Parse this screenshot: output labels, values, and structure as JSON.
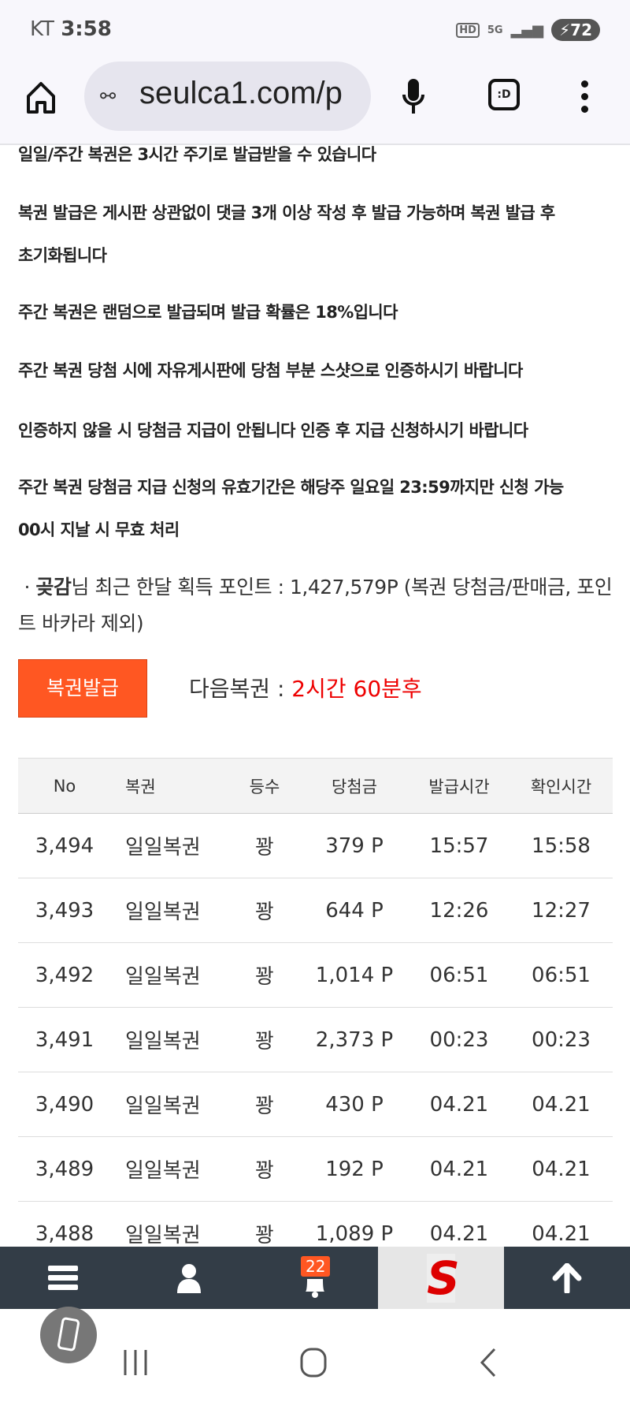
{
  "status_bar": {
    "carrier": "KT",
    "time": "3:58",
    "hd": "HD",
    "network": "5G",
    "battery": "72"
  },
  "browser": {
    "url": "seulca1.com/p",
    "tabs_label": ":D"
  },
  "rules": [
    "일일/주간 복권은 3시간 주기로 발급받을 수 있습니다",
    "복권 발급은 게시판 상관없이 댓글 3개 이상 작성 후 발급 가능하며 복권 발급 후",
    "초기화됩니다",
    "주간 복권은 랜덤으로 발급되며 발급 확률은 18%입니다",
    "주간 복권 당첨 시에 자유게시판에 당첨 부분 스샷으로 인증하시기 바랍니다",
    "인증하지 않을 시 당첨금 지급이 안됩니다 인증 후 지급 신청하시기 바랍니다",
    "주간 복권 당첨금 지급 신청의 유효기간은 해당주 일요일 23:59까지만 신청 가능",
    "00시 지날 시 무효 처리"
  ],
  "points": {
    "bullet": "·",
    "user": "곶감",
    "text": "님 최근 한달 획득 포인트 : 1,427,579P (복권 당첨금/판매금, 포인트 바카라 제외)"
  },
  "issue_button": "복권발급",
  "next": {
    "label": "다음복권 : ",
    "value": "2시간 60분후",
    "value_color": "#e00000"
  },
  "table": {
    "headers": [
      "No",
      "복권",
      "등수",
      "당첨금",
      "발급시간",
      "확인시간"
    ],
    "rows": [
      [
        "3,494",
        "일일복권",
        "꽝",
        "379 P",
        "15:57",
        "15:58"
      ],
      [
        "3,493",
        "일일복권",
        "꽝",
        "644 P",
        "12:26",
        "12:27"
      ],
      [
        "3,492",
        "일일복권",
        "꽝",
        "1,014 P",
        "06:51",
        "06:51"
      ],
      [
        "3,491",
        "일일복권",
        "꽝",
        "2,373 P",
        "00:23",
        "00:23"
      ],
      [
        "3,490",
        "일일복권",
        "꽝",
        "430 P",
        "04.21",
        "04.21"
      ],
      [
        "3,489",
        "일일복권",
        "꽝",
        "192 P",
        "04.21",
        "04.21"
      ],
      [
        "3,488",
        "일일복권",
        "꽝",
        "1,089 P",
        "04.21",
        "04.21"
      ]
    ]
  },
  "bottom_nav": {
    "notification_count": "22",
    "accent": "#ff5722",
    "logo_letter": "S"
  }
}
